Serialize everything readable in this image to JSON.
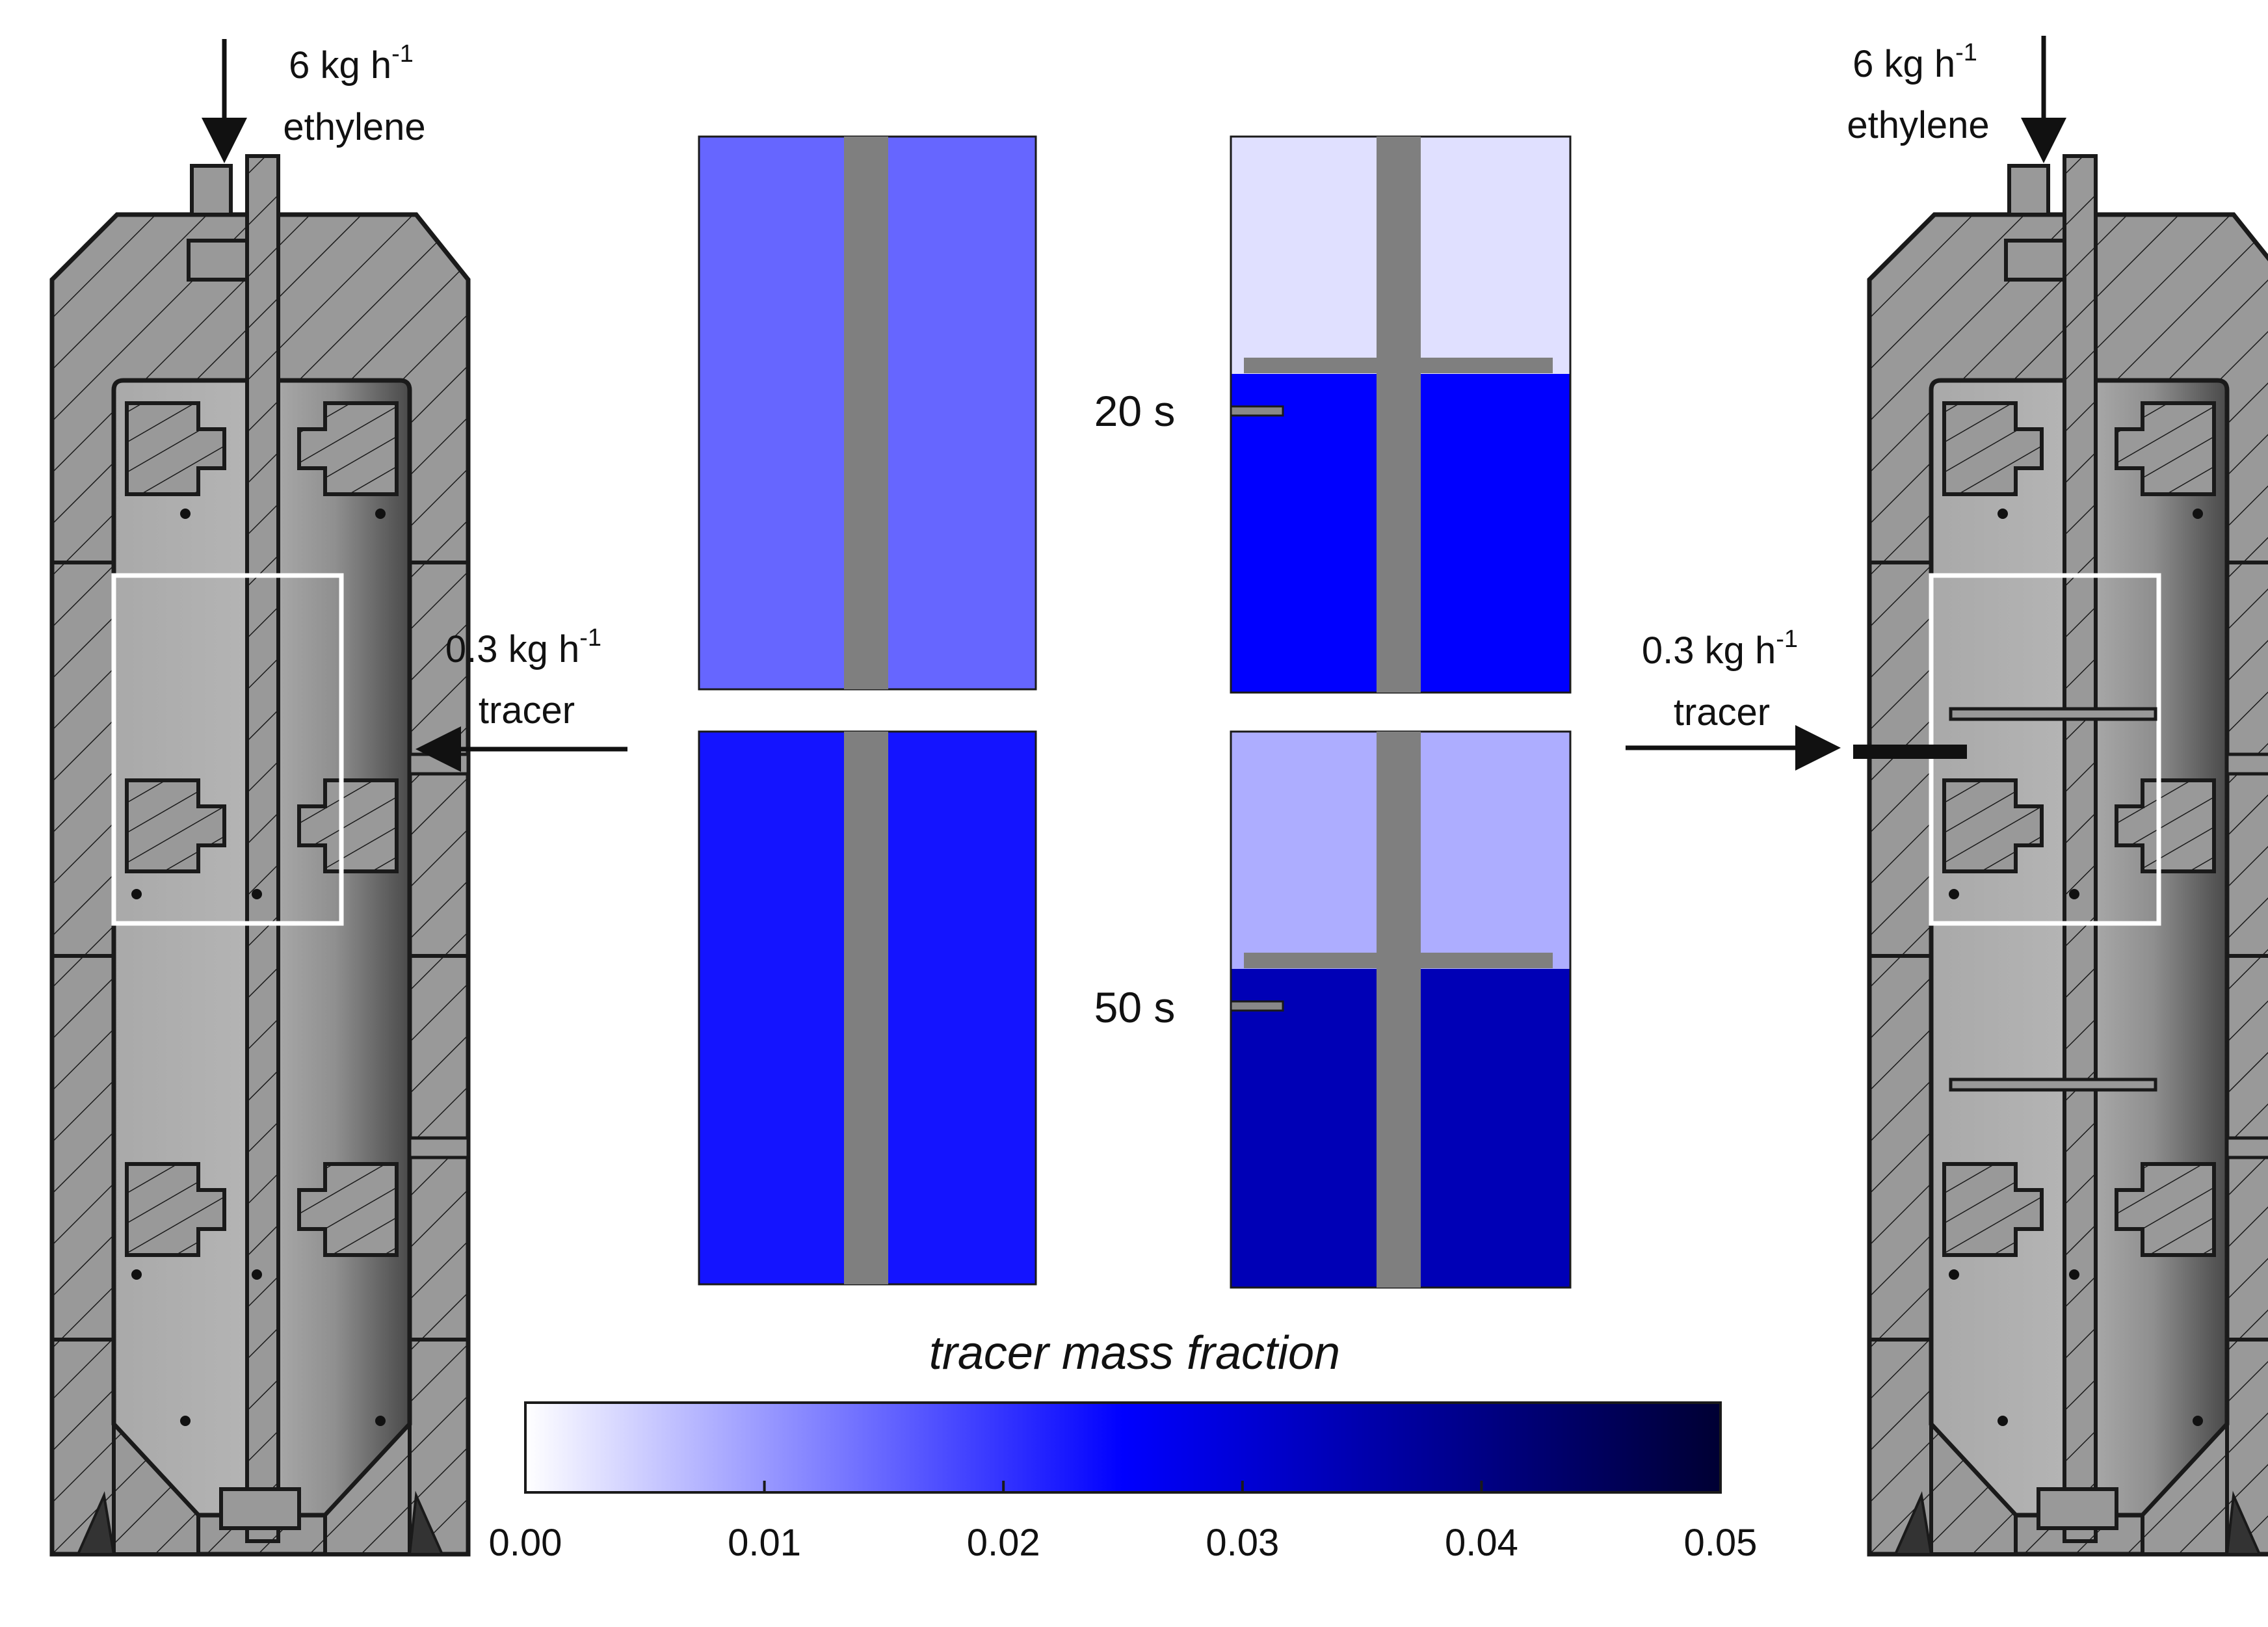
{
  "left_reactor": {
    "feed_rate": "6 kg h",
    "feed_exponent": "-1",
    "feed_species": "ethylene",
    "tracer_rate": "0.3 kg h",
    "tracer_exponent": "-1",
    "tracer_label": "tracer"
  },
  "right_reactor": {
    "feed_rate": "6 kg h",
    "feed_exponent": "-1",
    "feed_species": "ethylene",
    "tracer_rate": "0.3 kg h",
    "tracer_exponent": "-1",
    "tracer_label": "tracer"
  },
  "snapshots": {
    "times": [
      "20 s",
      "50 s"
    ],
    "left_column_mass_fraction": [
      0.015,
      0.023
    ],
    "right_column_top_mass_fraction": [
      0.003,
      0.008
    ],
    "right_column_bottom_mass_fraction": [
      0.025,
      0.034
    ]
  },
  "colorbar": {
    "title": "tracer mass fraction",
    "min": 0.0,
    "max": 0.05,
    "ticks": [
      "0.00",
      "0.01",
      "0.02",
      "0.03",
      "0.04",
      "0.05"
    ],
    "colors": [
      "#ffffff",
      "#0000ff",
      "#000033"
    ]
  },
  "colors": {
    "steel": "#9a9a9a",
    "steel_dark": "#7d7d7d",
    "stirrer": "#7f7f7f",
    "outline": "#1a1a1a"
  }
}
